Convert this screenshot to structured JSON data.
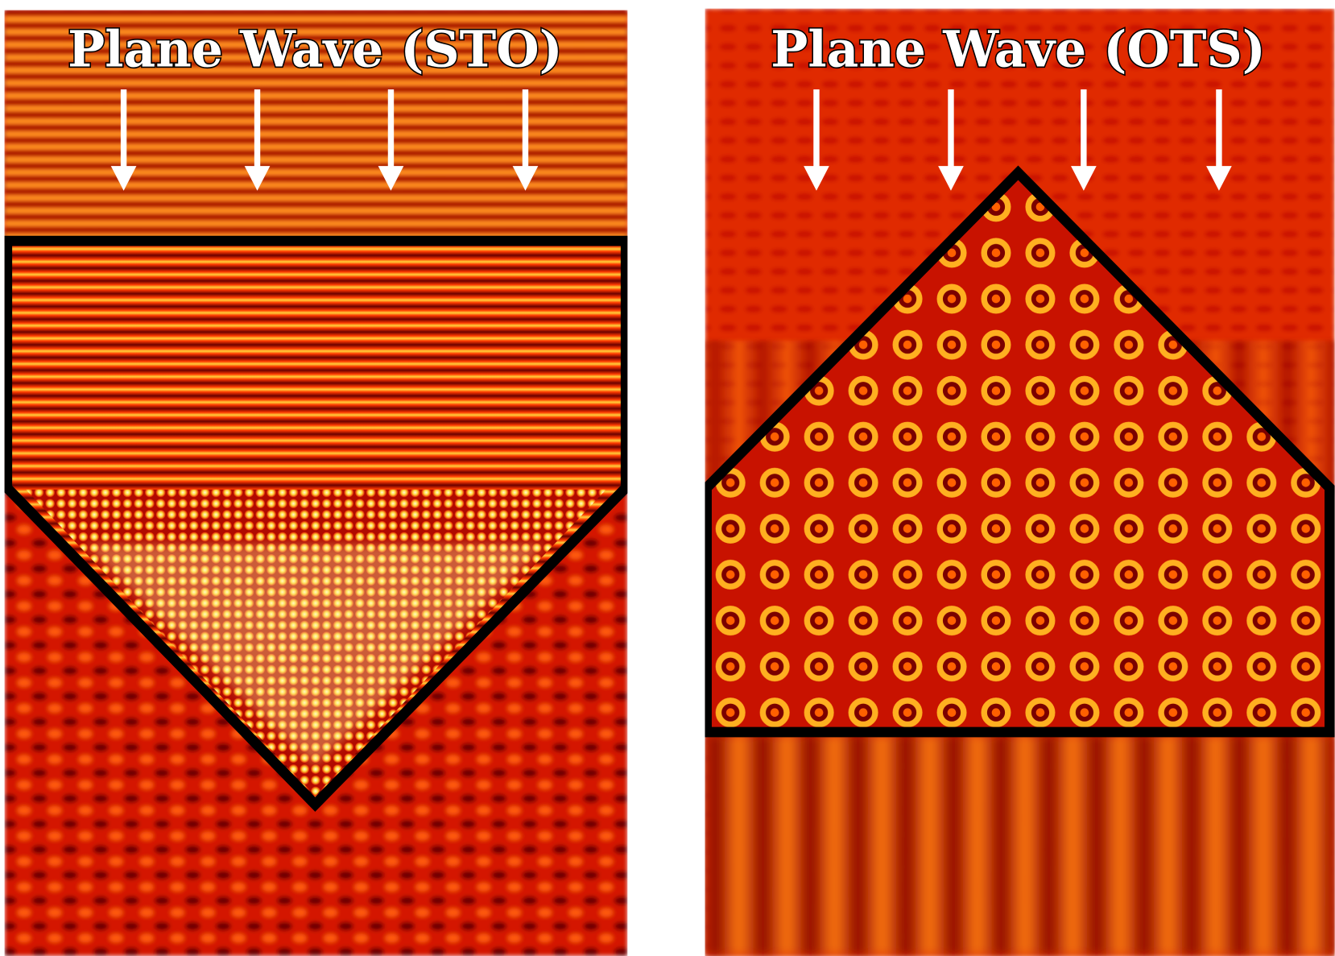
{
  "panels": [
    {
      "title": "Plane Wave (STO)"
    },
    {
      "title": "Plane Wave (OTS)"
    }
  ]
}
